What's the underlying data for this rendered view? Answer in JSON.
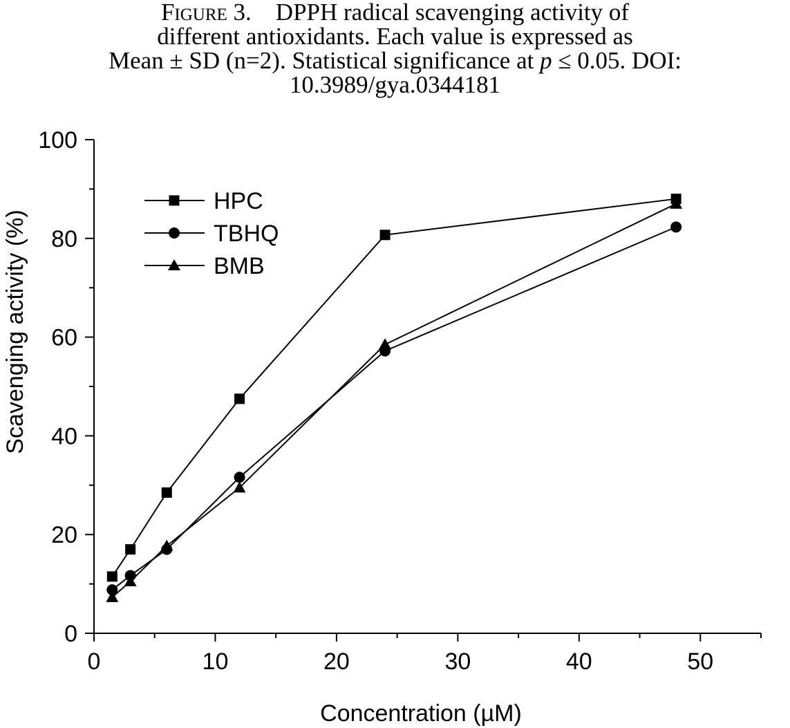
{
  "caption": {
    "figure_label": "Figure 3.",
    "line1_text": "DPPH radical scavenging activity of",
    "line2": "different antioxidants. Each value is expressed as",
    "line3_pre": "Mean ± SD (n=2). Statistical significance at",
    "line3_p": "p",
    "line3_post": "≤ 0.05. DOI:",
    "line4": "10.3989/gya.0344181"
  },
  "chart_data": {
    "type": "line",
    "xlabel": "Concentration (µM)",
    "ylabel": "Scavenging activity (%)",
    "xlim": [
      0,
      55
    ],
    "ylim": [
      0,
      100
    ],
    "x_ticks": [
      0,
      10,
      20,
      30,
      40,
      50
    ],
    "y_ticks": [
      0,
      20,
      40,
      60,
      80,
      100
    ],
    "x_minor_step": 5,
    "y_minor_step": 10,
    "grid": false,
    "legend_position": "top-left",
    "x": [
      1.5,
      3,
      6,
      12,
      24,
      48
    ],
    "series": [
      {
        "name": "HPC",
        "marker": "square",
        "values": [
          11.5,
          17.0,
          28.5,
          47.5,
          80.7,
          88.0
        ]
      },
      {
        "name": "TBHQ",
        "marker": "circle",
        "values": [
          8.8,
          11.7,
          17.0,
          31.6,
          57.2,
          82.3
        ]
      },
      {
        "name": "BMB",
        "marker": "triangle",
        "values": [
          7.3,
          10.5,
          17.7,
          29.5,
          58.5,
          87.0
        ]
      }
    ]
  }
}
